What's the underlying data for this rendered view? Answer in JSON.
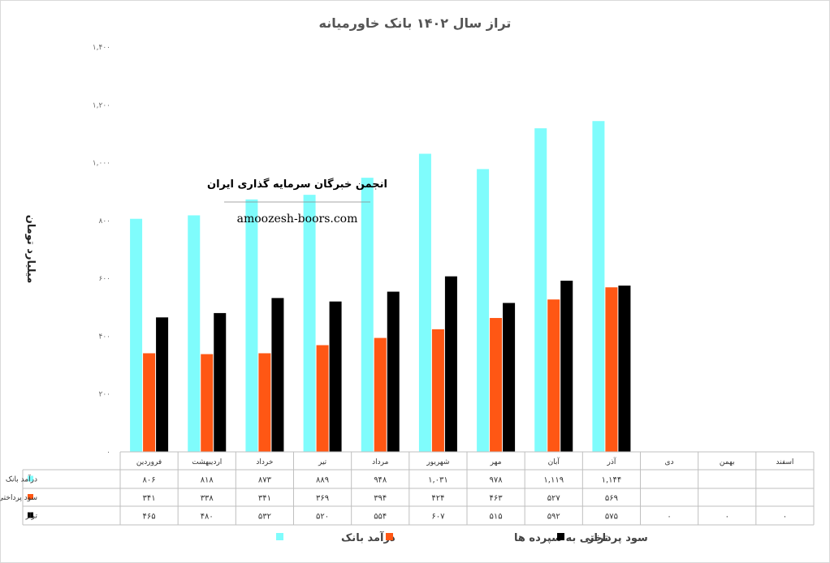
{
  "chart_data": {
    "type": "bar",
    "title": "تراز سال ۱۴۰۲ بانک خاورمیانه",
    "ylabel": "میلیارد تومان",
    "ylim": [
      0,
      1400
    ],
    "yticks": [
      "۰",
      "۲۰۰",
      "۴۰۰",
      "۶۰۰",
      "۸۰۰",
      "۱,۰۰۰",
      "۱,۲۰۰",
      "۱,۴۰۰"
    ],
    "ytick_values": [
      0,
      200,
      400,
      600,
      800,
      1000,
      1200,
      1400
    ],
    "grid": false,
    "legend": "bottom",
    "categories": [
      "فروردین",
      "اردیبهشت",
      "خرداد",
      "تیر",
      "مرداد",
      "شهریور",
      "مهر",
      "آبان",
      "آذر",
      "دی",
      "بهمن",
      "اسفند"
    ],
    "series": [
      {
        "name": "درآمد بانک",
        "color": "#7ffcfc",
        "values": [
          806,
          818,
          873,
          889,
          948,
          1031,
          978,
          1119,
          1144,
          null,
          null,
          null
        ],
        "labels": [
          "۸۰۶",
          "۸۱۸",
          "۸۷۳",
          "۸۸۹",
          "۹۴۸",
          "۱,۰۳۱",
          "۹۷۸",
          "۱,۱۱۹",
          "۱,۱۴۴",
          "",
          "",
          ""
        ]
      },
      {
        "name": "سود پرداختی به سپرده ها",
        "color": "#ff5714",
        "values": [
          341,
          338,
          341,
          369,
          394,
          424,
          463,
          527,
          569,
          null,
          null,
          null
        ],
        "labels": [
          "۳۴۱",
          "۳۳۸",
          "۳۴۱",
          "۳۶۹",
          "۳۹۴",
          "۴۲۴",
          "۴۶۳",
          "۵۲۷",
          "۵۶۹",
          "",
          "",
          ""
        ]
      },
      {
        "name": "تراز",
        "color": "#000000",
        "values": [
          465,
          480,
          532,
          520,
          554,
          607,
          515,
          592,
          575,
          0,
          0,
          0
        ],
        "labels": [
          "۴۶۵",
          "۴۸۰",
          "۵۳۲",
          "۵۲۰",
          "۵۵۴",
          "۶۰۷",
          "۵۱۵",
          "۵۹۲",
          "۵۷۵",
          "۰",
          "۰",
          "۰"
        ]
      }
    ]
  },
  "watermark": {
    "name": "انجمن خبرگان سرمایه گذاری ایران",
    "site": "amoozesh-boors.com"
  }
}
